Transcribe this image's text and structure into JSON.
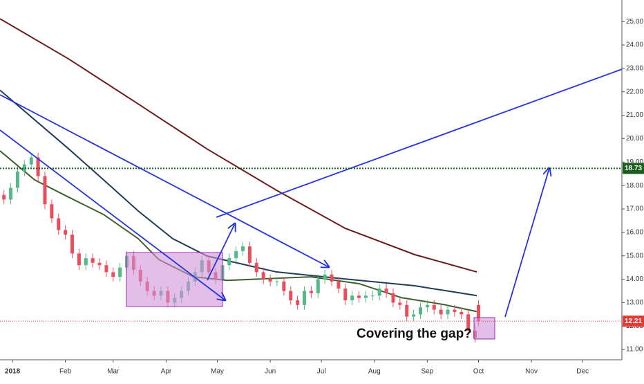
{
  "chart_data": {
    "type": "candlestick",
    "x": [
      -5,
      -1,
      3,
      7,
      11,
      15,
      19,
      23,
      27,
      31,
      35,
      39,
      43,
      47,
      51,
      55,
      59,
      63,
      67,
      71,
      75,
      79,
      83,
      87,
      91,
      95,
      99,
      103,
      107,
      111,
      115,
      119,
      123,
      127,
      131,
      135,
      139,
      143,
      147,
      151,
      155,
      159,
      163,
      167,
      171,
      175,
      179,
      183,
      187,
      191,
      195,
      199,
      203,
      207,
      211,
      215,
      219,
      223,
      227,
      231,
      235,
      239,
      243,
      247,
      251,
      255,
      259,
      263,
      267,
      271,
      273
    ],
    "open": [
      17.6,
      17.4,
      17.9,
      18.6,
      18.9,
      19.2,
      18.4,
      17.2,
      16.6,
      16.1,
      15.9,
      15.1,
      14.6,
      14.9,
      14.7,
      14.6,
      14.3,
      14.1,
      14.5,
      15.0,
      14.4,
      13.9,
      13.5,
      13.3,
      13.5,
      13.0,
      13.2,
      13.5,
      13.9,
      14.3,
      14.8,
      14.3,
      14.0,
      14.6,
      14.9,
      15.2,
      15.4,
      14.7,
      14.3,
      14.0,
      13.9,
      13.9,
      13.5,
      13.1,
      12.9,
      13.5,
      13.4,
      14.0,
      14.2,
      13.9,
      13.6,
      13.1,
      13.3,
      13.2,
      13.3,
      13.3,
      13.6,
      13.4,
      13.0,
      12.9,
      12.4,
      12.5,
      12.8,
      12.9,
      12.7,
      12.5,
      12.7,
      12.6,
      12.5,
      11.8,
      12.9
    ],
    "high": [
      17.8,
      18.1,
      18.8,
      19.1,
      19.4,
      19.4,
      18.6,
      17.4,
      16.8,
      16.3,
      16.1,
      15.3,
      15.1,
      15.1,
      14.9,
      14.8,
      14.5,
      14.7,
      15.2,
      15.2,
      14.6,
      14.1,
      13.7,
      13.7,
      13.7,
      13.4,
      13.7,
      14.1,
      14.5,
      15.0,
      15.0,
      14.5,
      14.8,
      15.1,
      15.4,
      15.6,
      15.6,
      14.9,
      14.5,
      14.2,
      14.1,
      14.1,
      13.7,
      13.3,
      13.7,
      13.7,
      14.2,
      14.4,
      14.4,
      14.1,
      13.8,
      13.5,
      13.5,
      13.5,
      13.5,
      13.8,
      13.8,
      13.6,
      13.2,
      13.1,
      12.7,
      13.0,
      13.1,
      13.1,
      12.9,
      12.9,
      12.9,
      12.8,
      12.7,
      12.0,
      13.1
    ],
    "low": [
      17.2,
      17.2,
      17.7,
      18.4,
      18.7,
      18.2,
      17.0,
      16.4,
      15.9,
      15.7,
      14.9,
      14.4,
      14.4,
      14.5,
      14.4,
      14.1,
      13.9,
      13.9,
      14.3,
      14.2,
      13.7,
      13.3,
      13.1,
      13.1,
      12.8,
      12.8,
      13.0,
      13.3,
      13.7,
      14.1,
      14.1,
      13.8,
      13.8,
      14.4,
      14.7,
      15.0,
      14.5,
      14.1,
      13.8,
      13.7,
      13.7,
      13.3,
      12.9,
      12.7,
      12.7,
      13.2,
      13.2,
      13.8,
      13.7,
      13.4,
      12.9,
      12.9,
      13.0,
      13.0,
      13.1,
      13.1,
      13.2,
      12.8,
      12.7,
      12.2,
      12.2,
      12.3,
      12.6,
      12.5,
      12.3,
      12.3,
      12.4,
      12.3,
      11.6,
      11.3,
      12.0
    ],
    "close": [
      17.4,
      17.9,
      18.6,
      18.9,
      19.2,
      18.4,
      17.2,
      16.6,
      16.1,
      15.9,
      15.1,
      14.6,
      14.9,
      14.7,
      14.6,
      14.3,
      14.1,
      14.5,
      15.0,
      14.4,
      13.9,
      13.5,
      13.3,
      13.5,
      13.0,
      13.2,
      13.5,
      13.9,
      14.3,
      14.8,
      14.3,
      14.0,
      14.6,
      14.9,
      15.2,
      15.4,
      14.7,
      14.3,
      14.0,
      13.9,
      13.9,
      13.5,
      13.1,
      12.9,
      13.5,
      13.4,
      14.0,
      14.2,
      13.9,
      13.6,
      13.1,
      13.3,
      13.2,
      13.3,
      13.3,
      13.6,
      13.4,
      13.0,
      12.9,
      12.4,
      12.5,
      12.8,
      12.9,
      12.7,
      12.5,
      12.7,
      12.6,
      12.5,
      11.8,
      11.5,
      12.21
    ],
    "up_color": "#53b987",
    "down_color": "#eb4d5c",
    "lines": [
      {
        "color": "#6b1a1a",
        "x": [
          -7.3,
          33,
          73.7,
          114,
          154.6,
          195,
          235.6,
          272
        ],
        "values": [
          25.12,
          23.4,
          21.48,
          19.56,
          17.8,
          16.17,
          15.05,
          14.31
        ]
      },
      {
        "color": "#1f3b5a",
        "x": [
          -7.3,
          33,
          53.4,
          73.7,
          93.9,
          114,
          154.6,
          195,
          235.6,
          272
        ],
        "values": [
          22.07,
          19.56,
          18.24,
          16.91,
          15.73,
          14.99,
          14.31,
          14.01,
          13.72,
          13.3
        ]
      },
      {
        "color": "#3f5f2a",
        "x": [
          -7.3,
          13,
          33,
          53.4,
          73.7,
          85.7,
          106,
          126,
          154.6,
          174.9,
          203,
          228,
          252.5,
          272
        ],
        "values": [
          19.48,
          18.24,
          17.5,
          16.76,
          15.73,
          14.84,
          14.1,
          13.95,
          14.04,
          14.1,
          13.81,
          13.21,
          12.92,
          12.62
        ]
      }
    ],
    "levels": [
      {
        "value": 18.73,
        "label": "18.73",
        "color": "#1b5e20"
      },
      {
        "value": 12.21,
        "label": "12.21",
        "color": "#e53935"
      }
    ],
    "annotation": "Covering the gap?",
    "xlim": [
      -7.3,
      357
    ],
    "ylim": [
      10.56,
      25.92
    ],
    "xticks": [
      {
        "value": 0,
        "label": "2018"
      },
      {
        "value": 31,
        "label": "Feb"
      },
      {
        "value": 59,
        "label": "Mar"
      },
      {
        "value": 90,
        "label": "Apr"
      },
      {
        "value": 120,
        "label": "May"
      },
      {
        "value": 151,
        "label": "Jun"
      },
      {
        "value": 181,
        "label": "Jul"
      },
      {
        "value": 212,
        "label": "Aug"
      },
      {
        "value": 243,
        "label": "Sep"
      },
      {
        "value": 273,
        "label": "Oct"
      },
      {
        "value": 304,
        "label": "Nov"
      },
      {
        "value": 334,
        "label": "Dec"
      }
    ],
    "yticks": [
      {
        "value": 11,
        "label": "11.00"
      },
      {
        "value": 12,
        "label": "12.00"
      },
      {
        "value": 13,
        "label": "13.00"
      },
      {
        "value": 14,
        "label": "14.00"
      },
      {
        "value": 15,
        "label": "15.00"
      },
      {
        "value": 16,
        "label": "16.00"
      },
      {
        "value": 17,
        "label": "17.00"
      },
      {
        "value": 18,
        "label": "18.00"
      },
      {
        "value": 19,
        "label": "19.00"
      },
      {
        "value": 20,
        "label": "20.00"
      },
      {
        "value": 21,
        "label": "21.00"
      },
      {
        "value": 22,
        "label": "22.00"
      },
      {
        "value": 23,
        "label": "23.00"
      },
      {
        "value": 24,
        "label": "24.00"
      },
      {
        "value": 25,
        "label": "25.00"
      }
    ]
  }
}
